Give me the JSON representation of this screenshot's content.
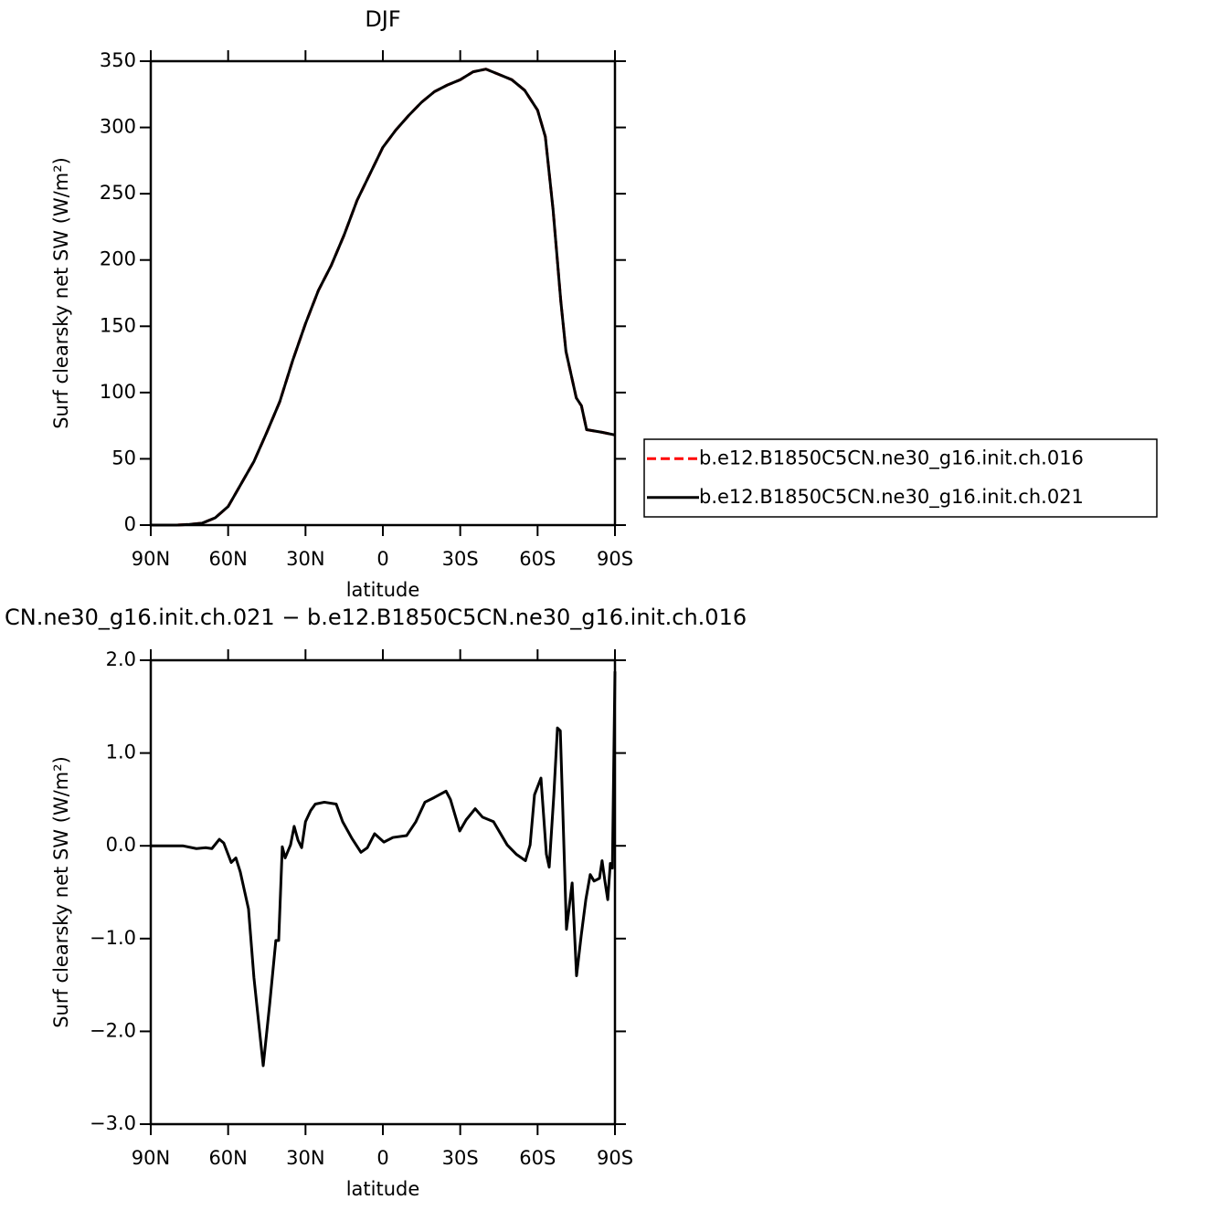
{
  "chart_data": [
    {
      "type": "line",
      "title": "DJF",
      "xlabel": "latitude",
      "ylabel": "Surf clearsky net SW (W/m²)",
      "x": [
        90,
        80,
        75,
        70,
        65,
        60,
        55,
        50,
        45,
        40,
        35,
        30,
        25,
        20,
        15,
        10,
        5,
        0,
        -5,
        -10,
        -15,
        -20,
        -25,
        -30,
        -35,
        -40,
        -45,
        -50,
        -55,
        -60,
        -63,
        -66,
        -69,
        -71,
        -75,
        -77,
        -79,
        -85,
        -90
      ],
      "series": [
        {
          "name": "b.e12.B1850C5CN.ne30_g16.init.ch.016",
          "color": "#ff0000",
          "linestyle": "dashed",
          "values": [
            0,
            0,
            0.5,
            1.5,
            5.5,
            14,
            31,
            48,
            70,
            93,
            124,
            152,
            177,
            196,
            219,
            245,
            265,
            285,
            298,
            309,
            319,
            327,
            332,
            336,
            342,
            344,
            340,
            336,
            328,
            313,
            293,
            238,
            169,
            131,
            96,
            90,
            72,
            70,
            68
          ]
        },
        {
          "name": "b.e12.B1850C5CN.ne30_g16.init.ch.021",
          "color": "#000000",
          "linestyle": "solid",
          "values": [
            0,
            0,
            0.5,
            1.5,
            5.5,
            14,
            31,
            48,
            70,
            93,
            124,
            152,
            177,
            196,
            219,
            245,
            265,
            285,
            298,
            309,
            319,
            327,
            332,
            336,
            342,
            344,
            340,
            336,
            328,
            313,
            293,
            238,
            169,
            131,
            96,
            90,
            72,
            70,
            68
          ]
        }
      ],
      "xlim": [
        90,
        -90
      ],
      "xticks": [
        {
          "value": 90,
          "label": "90N"
        },
        {
          "value": 60,
          "label": "60N"
        },
        {
          "value": 30,
          "label": "30N"
        },
        0,
        {
          "value": -30,
          "label": "30S"
        },
        {
          "value": -60,
          "label": "60S"
        },
        {
          "value": -90,
          "label": "90S"
        }
      ],
      "ylim": [
        0,
        350
      ],
      "yticks": [
        0,
        50,
        100,
        150,
        200,
        250,
        300,
        350
      ],
      "legend": "right"
    },
    {
      "type": "line",
      "title": "CN.ne30_g16.init.ch.021 − b.e12.B1850C5CN.ne30_g16.init.ch.016",
      "xlabel": "latitude",
      "ylabel": "Surf clearsky net SW (W/m²)",
      "x": [
        90,
        77.6,
        72.3,
        68.7,
        66.3,
        63.4,
        61.7,
        58.8,
        57,
        55.3,
        52.1,
        50,
        46.4,
        43.9,
        41.5,
        40.4,
        39,
        37.9,
        35.8,
        34.4,
        32.9,
        31.5,
        30,
        28,
        26.2,
        22.7,
        18.1,
        15.6,
        12,
        8.5,
        6,
        3.2,
        -0.4,
        -3.9,
        -9.2,
        -12.8,
        -16.3,
        -19.9,
        -24.5,
        -26.2,
        -29.8,
        -32.3,
        -35.8,
        -38.6,
        -42.9,
        -48.2,
        -51.7,
        -55.3,
        -57.1,
        -58.8,
        -61.3,
        -63.4,
        -64.5,
        -66.3,
        -67.7,
        -68.8,
        -69.8,
        -71.2,
        -73.4,
        -75.1,
        -76.9,
        -78.7,
        -80.4,
        -81.9,
        -84,
        -85,
        -86.1,
        -87.2,
        -88.2,
        -89,
        -90
      ],
      "series": [
        {
          "name": null,
          "color": "#000000",
          "linestyle": "solid",
          "values": [
            0,
            0,
            -0.03,
            -0.02,
            -0.03,
            0.07,
            0.03,
            -0.18,
            -0.13,
            -0.28,
            -0.68,
            -1.42,
            -2.37,
            -1.71,
            -1.02,
            -1.02,
            -0.01,
            -0.13,
            0.01,
            0.21,
            0.06,
            -0.02,
            0.26,
            0.38,
            0.45,
            0.47,
            0.45,
            0.26,
            0.08,
            -0.07,
            -0.02,
            0.13,
            0.04,
            0.09,
            0.11,
            0.26,
            0.47,
            0.52,
            0.59,
            0.5,
            0.16,
            0.28,
            0.4,
            0.31,
            0.26,
            0.01,
            -0.09,
            -0.16,
            0.01,
            0.55,
            0.73,
            -0.09,
            -0.23,
            0.55,
            1.27,
            1.24,
            0.36,
            -0.9,
            -0.4,
            -1.4,
            -0.97,
            -0.58,
            -0.31,
            -0.38,
            -0.35,
            -0.16,
            -0.38,
            -0.58,
            -0.19,
            -0.24,
            1.88
          ]
        }
      ],
      "xlim": [
        90,
        -90
      ],
      "xticks": [
        {
          "value": 90,
          "label": "90N"
        },
        {
          "value": 60,
          "label": "60N"
        },
        {
          "value": 30,
          "label": "30N"
        },
        0,
        {
          "value": -30,
          "label": "30S"
        },
        {
          "value": -60,
          "label": "60S"
        },
        {
          "value": -90,
          "label": "90S"
        }
      ],
      "ylim": [
        -3,
        2
      ],
      "yticks": [
        {
          "value": -3,
          "label": "−3.0"
        },
        {
          "value": -2,
          "label": "−2.0"
        },
        {
          "value": -1,
          "label": "−1.0"
        },
        {
          "value": 0,
          "label": "0.0"
        },
        {
          "value": 1,
          "label": "1.0"
        },
        {
          "value": 2,
          "label": "2.0"
        }
      ]
    }
  ]
}
